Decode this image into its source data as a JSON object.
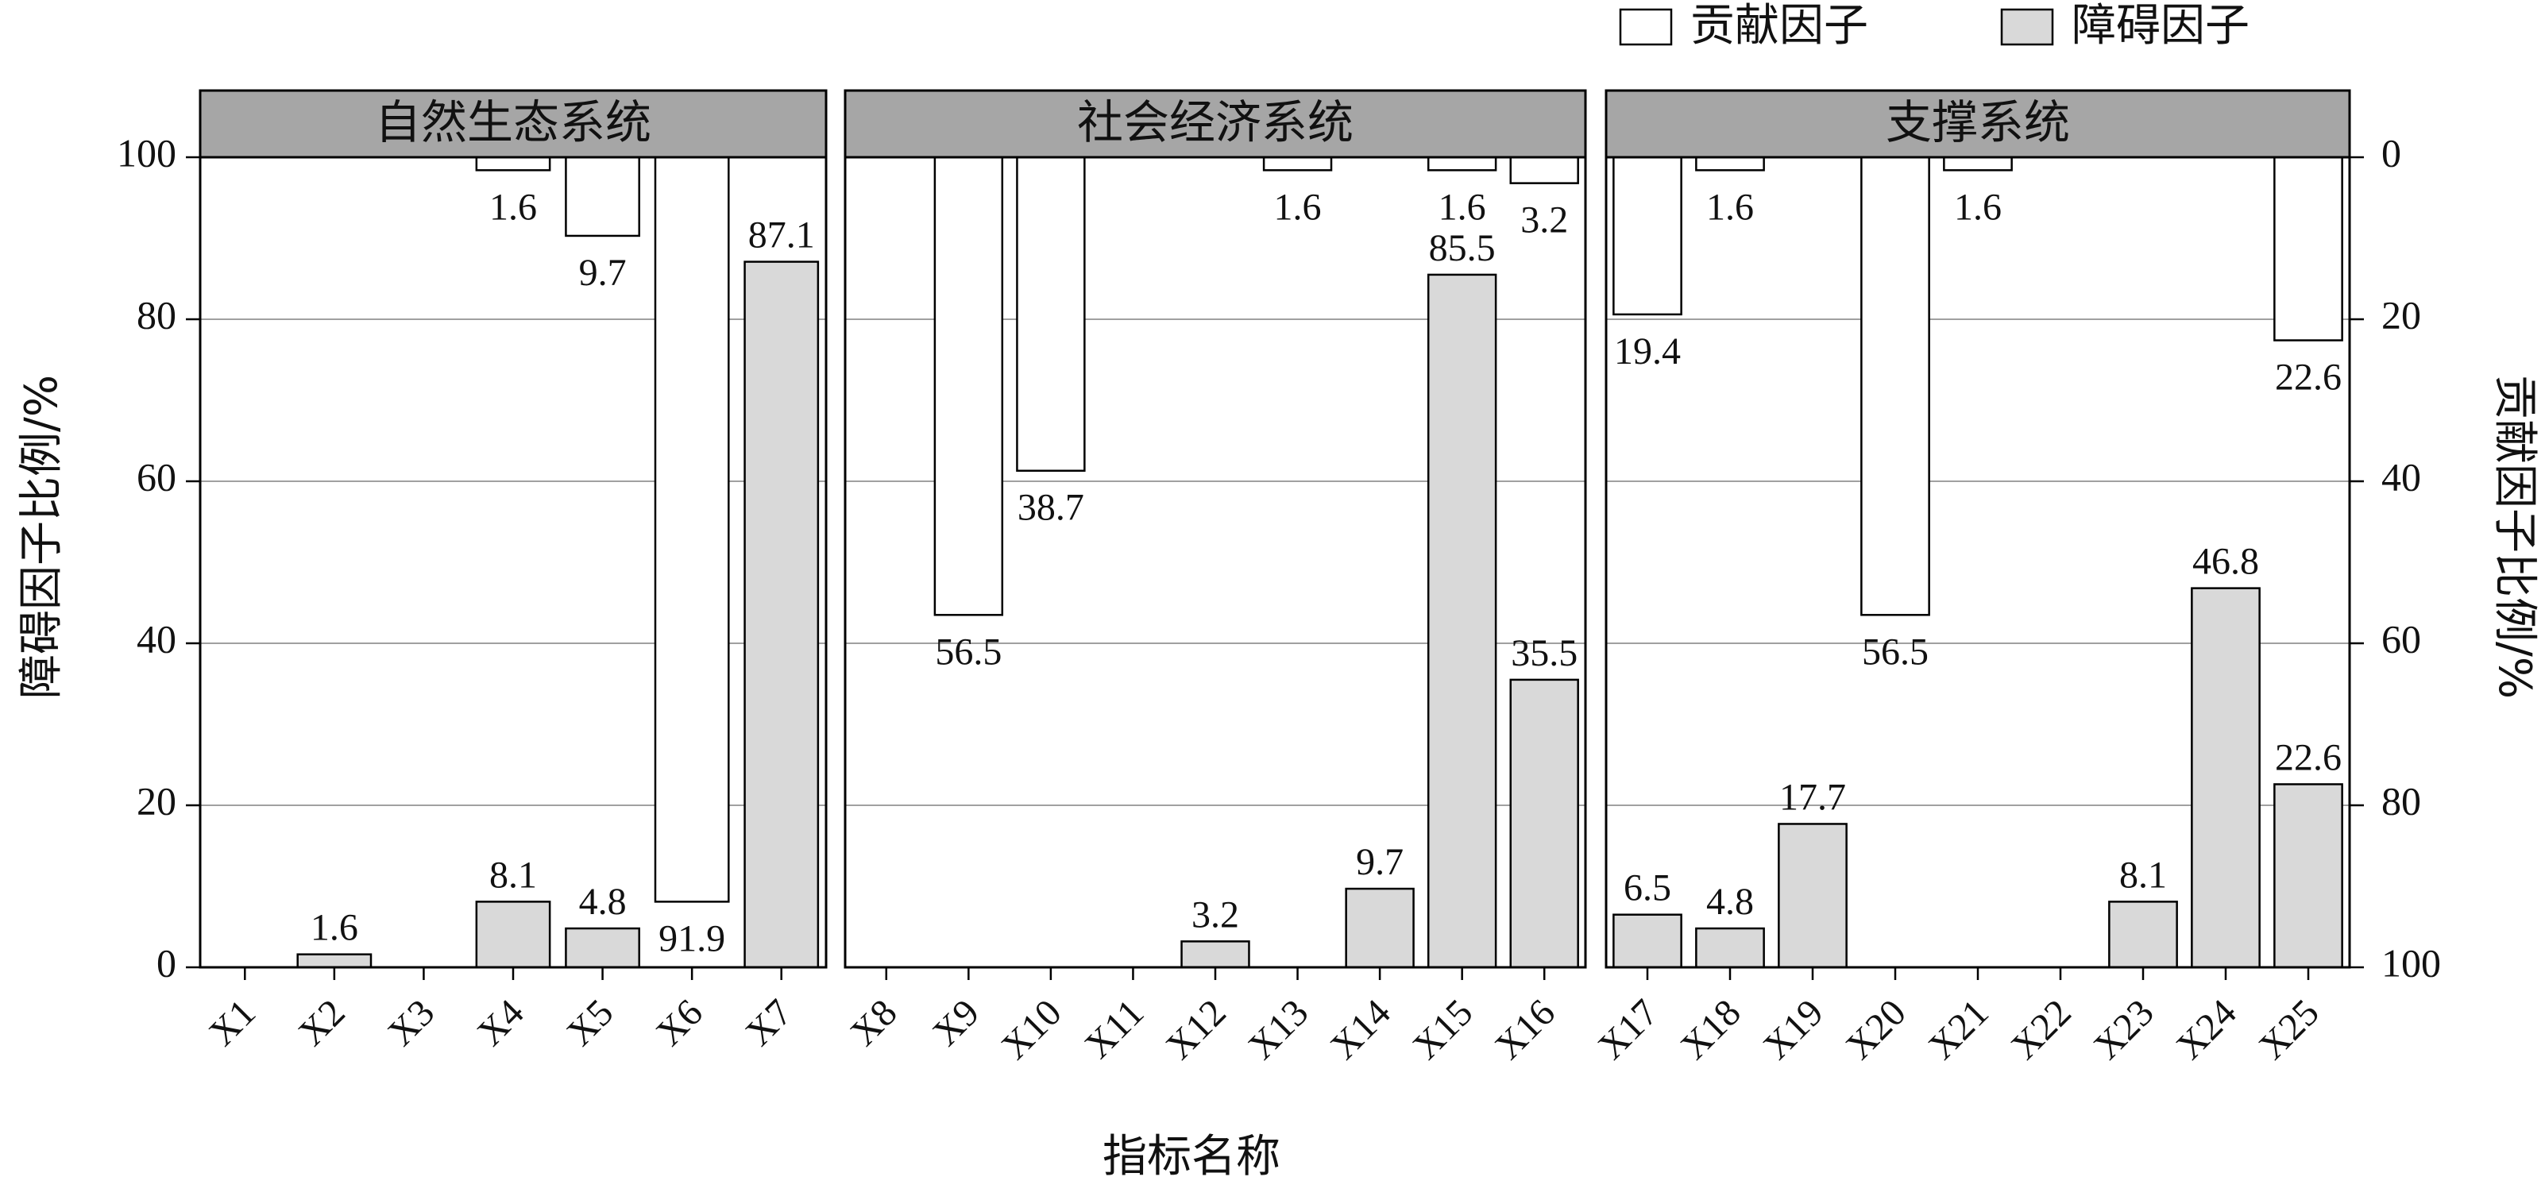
{
  "chart_data": {
    "type": "bar",
    "legend": {
      "placement": "top-right",
      "items": [
        {
          "key": "contrib",
          "label": "贡献因子",
          "fill": "#ffffff"
        },
        {
          "key": "obstacle",
          "label": "障碍因子",
          "fill": "#d9d9d9"
        }
      ]
    },
    "xlabel": "指标名称",
    "ylabel_left": "障碍因子比例/%",
    "ylabel_right": "贡献因子比例/%",
    "ylim_left": [
      0,
      100
    ],
    "ylim_right": [
      100,
      0
    ],
    "yticks_left": [
      "0",
      "20",
      "40",
      "60",
      "80",
      "100"
    ],
    "yticks_right": [
      "100",
      "80",
      "60",
      "40",
      "20",
      "0"
    ],
    "grid": "horizontal",
    "colors": {
      "obstacle": "#d9d9d9",
      "contrib": "#ffffff",
      "strip": "#a6a6a6",
      "grid": "#a0a0a0",
      "edge": "#000000"
    },
    "panels": [
      {
        "title": "自然生态系统",
        "categories": [
          "X1",
          "X2",
          "X3",
          "X4",
          "X5",
          "X6",
          "X7"
        ],
        "series": [
          {
            "name": "障碍因子",
            "key": "obstacle",
            "values": [
              0,
              1.6,
              0,
              8.1,
              4.8,
              0,
              87.1
            ]
          },
          {
            "name": "贡献因子",
            "key": "contrib",
            "values": [
              0,
              0,
              0,
              1.6,
              9.7,
              91.9,
              0
            ]
          }
        ],
        "obstacle_labels": [
          "",
          "1.6",
          "",
          "8.1",
          "4.8",
          "",
          "87.1"
        ],
        "contrib_labels": [
          "",
          "",
          "",
          "1.6",
          "9.7",
          "91.9",
          ""
        ]
      },
      {
        "title": "社会经济系统",
        "categories": [
          "X8",
          "X9",
          "X10",
          "X11",
          "X12",
          "X13",
          "X14",
          "X15",
          "X16"
        ],
        "series": [
          {
            "name": "障碍因子",
            "key": "obstacle",
            "values": [
              0,
              0,
              0,
              0,
              3.2,
              0,
              9.7,
              85.5,
              35.5
            ]
          },
          {
            "name": "贡献因子",
            "key": "contrib",
            "values": [
              0,
              56.5,
              38.7,
              0,
              0,
              1.6,
              0,
              1.6,
              3.2
            ]
          }
        ],
        "obstacle_labels": [
          "",
          "",
          "",
          "",
          "3.2",
          "",
          "9.7",
          "85.5",
          "35.5"
        ],
        "contrib_labels": [
          "",
          "56.5",
          "38.7",
          "",
          "",
          "1.6",
          "",
          "1.6",
          "3.2"
        ]
      },
      {
        "title": "支撑系统",
        "categories": [
          "X17",
          "X18",
          "X19",
          "X20",
          "X21",
          "X22",
          "X23",
          "X24",
          "X25"
        ],
        "series": [
          {
            "name": "障碍因子",
            "key": "obstacle",
            "values": [
              6.5,
              4.8,
              17.7,
              0,
              0,
              0,
              8.1,
              46.8,
              22.6
            ]
          },
          {
            "name": "贡献因子",
            "key": "contrib",
            "values": [
              19.4,
              1.6,
              0,
              56.5,
              1.6,
              0,
              0,
              0,
              22.6
            ]
          }
        ],
        "obstacle_labels": [
          "6.5",
          "4.8",
          "17.7",
          "",
          "",
          "",
          "8.1",
          "46.8",
          "22.6"
        ],
        "contrib_labels": [
          "19.4",
          "1.6",
          "",
          "56.5",
          "1.6",
          "",
          "",
          "",
          "22.6"
        ]
      }
    ]
  }
}
